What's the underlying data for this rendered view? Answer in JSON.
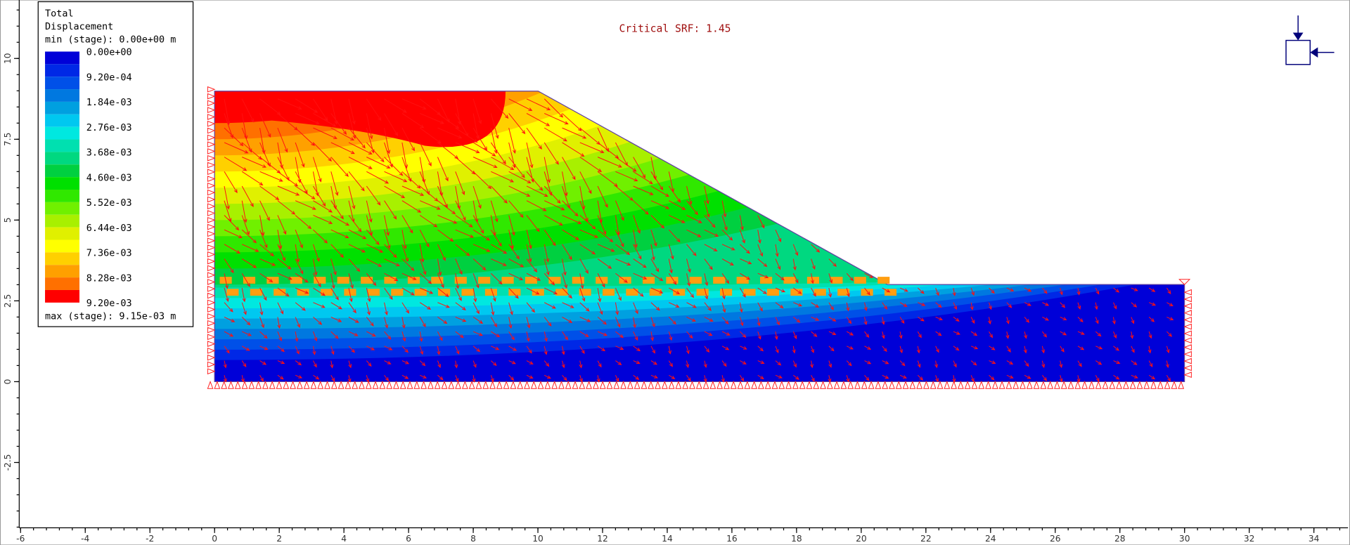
{
  "legend": {
    "title": [
      "Total",
      "Displacement"
    ],
    "min_label": "min (stage): 0.00e+00 m",
    "level_labels": [
      "0.00e+00",
      "9.20e-04",
      "1.84e-03",
      "2.76e-03",
      "3.68e-03",
      "4.60e-03",
      "5.52e-03",
      "6.44e-03",
      "7.36e-03",
      "8.28e-03",
      "9.20e-03"
    ],
    "colors": [
      "#0000d8",
      "#0028e6",
      "#0050e8",
      "#0078e0",
      "#00a0e0",
      "#00c8f0",
      "#00e8e0",
      "#00e0b0",
      "#00d880",
      "#00d040",
      "#00e000",
      "#30e800",
      "#70f000",
      "#a8f000",
      "#e0f000",
      "#ffff00",
      "#ffd000",
      "#ffa000",
      "#ff7000",
      "#ff0000"
    ],
    "max_label": "max (stage): 9.15e-03 m"
  },
  "annotation": "Critical SRF: 1.45",
  "x_axis": {
    "ticks": [
      -6,
      -4,
      -2,
      0,
      2,
      4,
      6,
      8,
      10,
      12,
      14,
      16,
      18,
      20,
      22,
      24,
      26,
      28,
      30,
      32,
      34
    ]
  },
  "y_axis": {
    "ticks": [
      10,
      7.5,
      5,
      2.5,
      0,
      -2.5
    ]
  }
}
